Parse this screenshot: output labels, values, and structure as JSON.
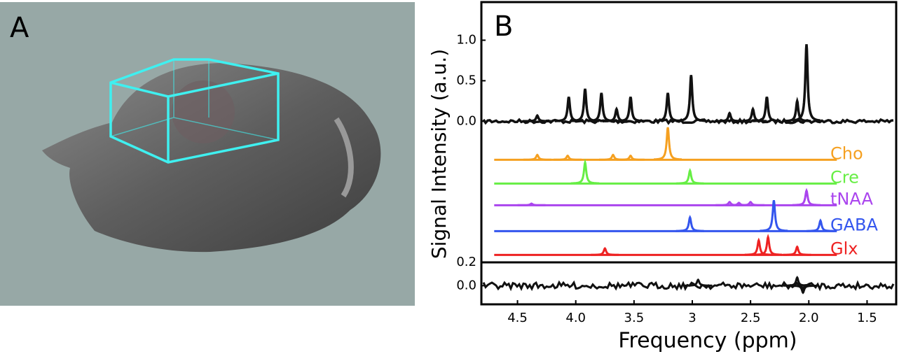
{
  "panel_a": {
    "label": "A"
  },
  "chart_data": [
    {
      "type": "line",
      "panel_label": "B",
      "xlabel": "Frequency (ppm)",
      "ylabel": "Signal Intensity (a.u.)",
      "xlim": [
        4.81,
        1.25
      ],
      "xticks": [
        {
          "value": 4.5,
          "label": "4.5"
        },
        {
          "value": 4,
          "label": "4.0"
        },
        {
          "value": 3.5,
          "label": "3.5"
        },
        3,
        {
          "value": 2.5,
          "label": "2.5"
        },
        {
          "value": 2,
          "label": "2.0"
        },
        {
          "value": 1.5,
          "label": "1.5"
        }
      ],
      "ylim": [
        -1.74,
        1.47
      ],
      "yticks": [
        {
          "value": 0,
          "label": "0.0"
        },
        {
          "value": 0.5,
          "label": "0.5"
        },
        {
          "value": 1,
          "label": "1.0"
        }
      ],
      "series": [
        {
          "color": "#111111",
          "x": [
            4.33,
            4.06,
            3.92,
            3.78,
            3.65,
            3.53,
            3.21,
            3.01,
            2.68,
            2.48,
            2.36,
            2.1,
            2.02
          ],
          "values": [
            0.07,
            0.3,
            0.4,
            0.35,
            0.15,
            0.3,
            0.35,
            0.57,
            0.1,
            0.15,
            0.3,
            0.25,
            0.95
          ]
        },
        {
          "name": "Cho",
          "color": "#f5a020",
          "x": [
            4.33,
            4.07,
            3.68,
            3.53,
            3.21
          ],
          "values": [
            0.06,
            0.05,
            0.06,
            0.05,
            0.4
          ]
        },
        {
          "name": "Cre",
          "color": "#66ee44",
          "x": [
            3.92,
            3.02
          ],
          "values": [
            0.26,
            0.16
          ]
        },
        {
          "name": "tNAA",
          "color": "#aa44ee",
          "x": [
            4.38,
            2.68,
            2.6,
            2.5,
            2.02
          ],
          "values": [
            0.02,
            0.04,
            0.03,
            0.04,
            0.18
          ]
        },
        {
          "name": "GABA",
          "color": "#3355ee",
          "x": [
            3.02,
            2.3,
            1.9
          ],
          "values": [
            0.17,
            0.38,
            0.13
          ]
        },
        {
          "name": "Glx",
          "color": "#ee2222",
          "x": [
            3.75,
            2.43,
            2.35,
            2.1
          ],
          "values": [
            0.08,
            0.18,
            0.22,
            0.1
          ]
        }
      ]
    },
    {
      "type": "line",
      "ylim": [
        -0.16,
        0.2
      ],
      "yticks": [
        {
          "value": 0,
          "label": "0.0"
        },
        {
          "value": 0.2,
          "label": "0.2"
        }
      ],
      "series": [
        {
          "color": "#111111",
          "x": [
            2.95,
            2.1,
            2.05
          ],
          "values": [
            0.05,
            0.07,
            -0.06
          ]
        }
      ]
    }
  ]
}
